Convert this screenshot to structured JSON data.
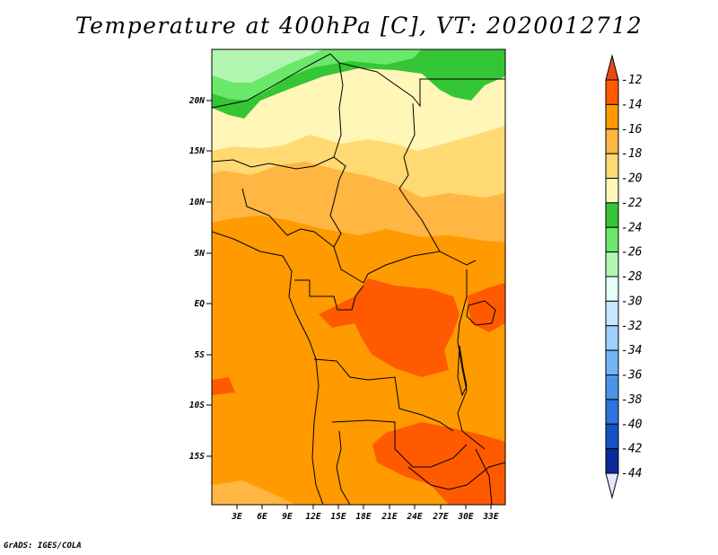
{
  "title": "Temperature at 400hPa [C], VT: 2020012712",
  "footer": "GrADS: IGES/COLA",
  "lat_labels": [
    "20N",
    "15N",
    "10N",
    "5N",
    "EQ",
    "5S",
    "10S",
    "15S"
  ],
  "lon_labels": [
    "3E",
    "6E",
    "9E",
    "12E",
    "15E",
    "18E",
    "21E",
    "24E",
    "27E",
    "30E",
    "33E"
  ],
  "colorbar": {
    "labels": [
      "-12",
      "-14",
      "-16",
      "-18",
      "-20",
      "-22",
      "-24",
      "-26",
      "-28",
      "-30",
      "-32",
      "-34",
      "-36",
      "-38",
      "-40",
      "-42",
      "-44"
    ],
    "colors": [
      "#ff5a00",
      "#ff9a00",
      "#ffb642",
      "#ffda72",
      "#fff6b8",
      "#34c634",
      "#6ae86a",
      "#b2f6b2",
      "#e6fff6",
      "#c8e6ff",
      "#9ed0ff",
      "#73b4f6",
      "#4b94ea",
      "#2d74dc",
      "#1552c8",
      "#0a2a9a"
    ],
    "top_color": "#e84a14",
    "bottom_color": "#e6e6ff"
  },
  "map": {
    "lon_range": [
      0,
      34.5
    ],
    "lat_range": [
      -20,
      24.5
    ]
  }
}
